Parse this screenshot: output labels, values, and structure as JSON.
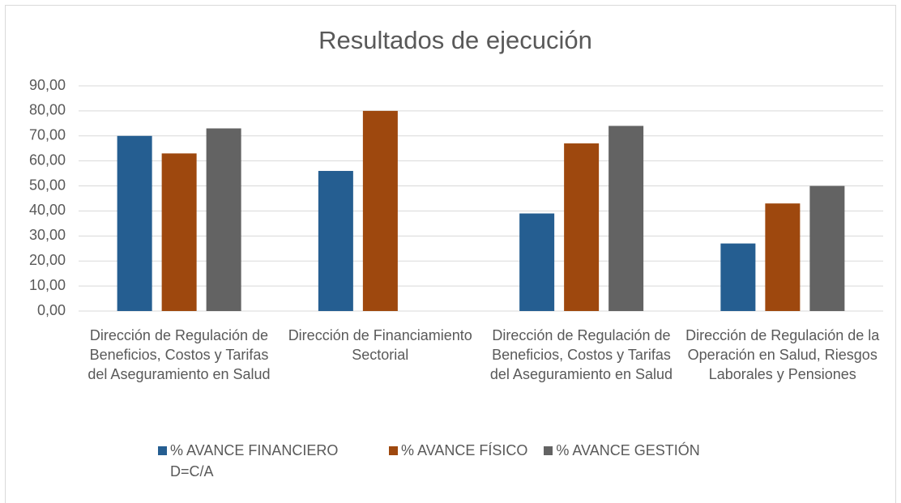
{
  "chart_data": {
    "type": "bar",
    "title": "Resultados de ejecución",
    "categories": [
      "Dirección de  Regulación de Beneficios, Costos y Tarifas del Aseguramiento en Salud",
      "Dirección de Financiamiento Sectorial",
      "Dirección de  Regulación de Beneficios, Costos y Tarifas del Aseguramiento en Salud",
      "Dirección de Regulación de la Operación en Salud, Riesgos Laborales y Pensiones"
    ],
    "series": [
      {
        "name": "% AVANCE FINANCIERO D=C/A",
        "color": "#255e91",
        "values": [
          70,
          56,
          39,
          27
        ]
      },
      {
        "name": "% AVANCE FÍSICO",
        "color": "#9e480e",
        "values": [
          63,
          80,
          67,
          43
        ]
      },
      {
        "name": "% AVANCE GESTIÓN",
        "color": "#636363",
        "values": [
          73,
          null,
          74,
          50
        ]
      }
    ],
    "ylim": [
      0,
      90
    ],
    "yticks": [
      {
        "value": 0,
        "label": "0,00"
      },
      {
        "value": 10,
        "label": "10,00"
      },
      {
        "value": 20,
        "label": "20,00"
      },
      {
        "value": 30,
        "label": "30,00"
      },
      {
        "value": 40,
        "label": "40,00"
      },
      {
        "value": 50,
        "label": "50,00"
      },
      {
        "value": 60,
        "label": "60,00"
      },
      {
        "value": 70,
        "label": "70,00"
      },
      {
        "value": 80,
        "label": "80,00"
      },
      {
        "value": 90,
        "label": "90,00"
      }
    ],
    "grid": true,
    "legend": "bottom"
  }
}
